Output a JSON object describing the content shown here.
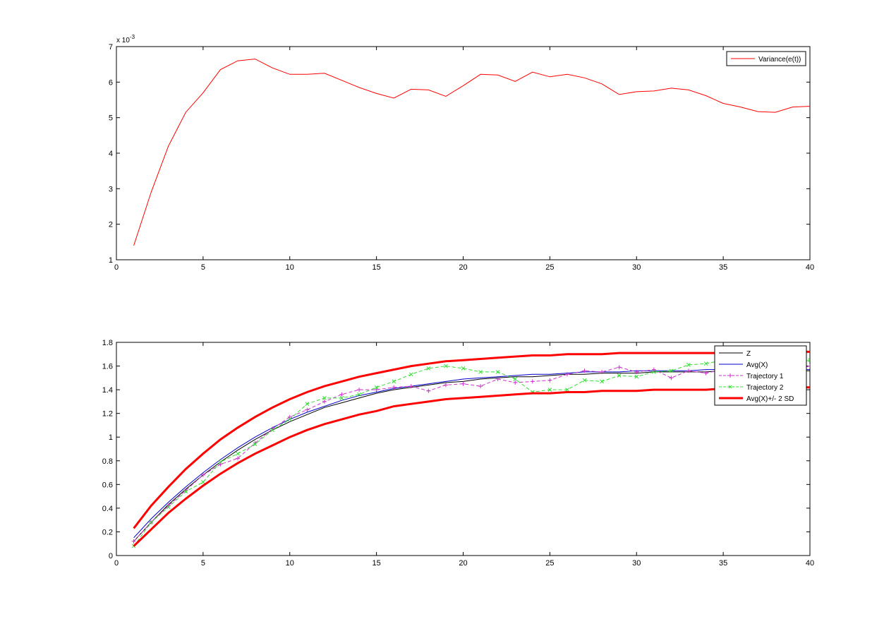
{
  "chart_data": [
    {
      "type": "line",
      "title": "",
      "xlabel": "",
      "ylabel": "",
      "xlim": [
        0,
        40
      ],
      "ylim": [
        1,
        7
      ],
      "y_multiplier_label": "x 10",
      "y_multiplier_exponent": "-3",
      "x_ticks": [
        0,
        5,
        10,
        15,
        20,
        25,
        30,
        35,
        40
      ],
      "y_ticks": [
        1,
        2,
        3,
        4,
        5,
        6,
        7
      ],
      "grid": false,
      "legend_position": "top-right",
      "series": [
        {
          "name": "Variance(e(t))",
          "color": "#ff0000",
          "style": "solid",
          "x": [
            1,
            2,
            3,
            4,
            5,
            6,
            7,
            8,
            9,
            10,
            11,
            12,
            13,
            14,
            15,
            16,
            17,
            18,
            19,
            20,
            21,
            22,
            23,
            24,
            25,
            26,
            27,
            28,
            29,
            30,
            31,
            32,
            33,
            34,
            35,
            36,
            37,
            38,
            39,
            40
          ],
          "values": [
            1.4,
            2.9,
            4.2,
            5.15,
            5.7,
            6.35,
            6.6,
            6.65,
            6.4,
            6.22,
            6.22,
            6.25,
            6.05,
            5.85,
            5.68,
            5.55,
            5.8,
            5.78,
            5.6,
            5.9,
            6.22,
            6.2,
            6.02,
            6.28,
            6.15,
            6.22,
            6.12,
            5.95,
            5.65,
            5.73,
            5.75,
            5.83,
            5.78,
            5.62,
            5.4,
            5.3,
            5.17,
            5.15,
            5.3,
            5.32
          ]
        }
      ]
    },
    {
      "type": "line",
      "title": "",
      "xlabel": "",
      "ylabel": "",
      "xlim": [
        0,
        40
      ],
      "ylim": [
        0,
        1.8
      ],
      "x_ticks": [
        0,
        5,
        10,
        15,
        20,
        25,
        30,
        35,
        40
      ],
      "y_ticks": [
        0,
        0.2,
        0.4,
        0.6,
        0.8,
        1,
        1.2,
        1.4,
        1.6,
        1.8
      ],
      "grid": false,
      "legend_position": "top-right",
      "x": [
        1,
        2,
        3,
        4,
        5,
        6,
        7,
        8,
        9,
        10,
        11,
        12,
        13,
        14,
        15,
        16,
        17,
        18,
        19,
        20,
        21,
        22,
        23,
        24,
        25,
        26,
        27,
        28,
        29,
        30,
        31,
        32,
        33,
        34,
        35,
        36,
        37,
        38,
        39,
        40
      ],
      "series": [
        {
          "name": "Z",
          "color": "#000000",
          "style": "solid",
          "values": [
            0.12,
            0.28,
            0.43,
            0.56,
            0.68,
            0.79,
            0.89,
            0.98,
            1.06,
            1.13,
            1.19,
            1.25,
            1.29,
            1.33,
            1.37,
            1.4,
            1.42,
            1.44,
            1.46,
            1.47,
            1.49,
            1.5,
            1.51,
            1.51,
            1.52,
            1.53,
            1.53,
            1.54,
            1.54,
            1.54,
            1.55,
            1.55,
            1.55,
            1.55,
            1.56,
            1.56,
            1.56,
            1.56,
            1.56,
            1.56
          ]
        },
        {
          "name": "Avg(X)",
          "color": "#0000cc",
          "style": "solid",
          "values": [
            0.15,
            0.31,
            0.45,
            0.58,
            0.7,
            0.81,
            0.91,
            1.0,
            1.08,
            1.15,
            1.21,
            1.26,
            1.31,
            1.35,
            1.38,
            1.41,
            1.43,
            1.45,
            1.47,
            1.49,
            1.5,
            1.51,
            1.52,
            1.53,
            1.53,
            1.54,
            1.55,
            1.55,
            1.55,
            1.56,
            1.56,
            1.56,
            1.56,
            1.57,
            1.57,
            1.57,
            1.57,
            1.57,
            1.57,
            1.57
          ]
        },
        {
          "name": "Trajectory 1",
          "color": "#cc33cc",
          "style": "dashed",
          "marker": "+",
          "values": [
            0.12,
            0.28,
            0.42,
            0.55,
            0.68,
            0.77,
            0.82,
            0.95,
            1.07,
            1.17,
            1.23,
            1.3,
            1.36,
            1.4,
            1.4,
            1.42,
            1.43,
            1.39,
            1.44,
            1.45,
            1.43,
            1.49,
            1.46,
            1.47,
            1.48,
            1.53,
            1.56,
            1.55,
            1.59,
            1.55,
            1.57,
            1.5,
            1.56,
            1.54,
            1.57,
            1.58,
            1.57,
            1.58,
            1.57,
            1.6
          ]
        },
        {
          "name": "Trajectory 2",
          "color": "#33dd33",
          "style": "dashed",
          "marker": "x",
          "values": [
            0.08,
            0.28,
            0.41,
            0.54,
            0.62,
            0.79,
            0.86,
            0.94,
            1.06,
            1.15,
            1.28,
            1.33,
            1.33,
            1.36,
            1.42,
            1.47,
            1.53,
            1.58,
            1.6,
            1.58,
            1.55,
            1.55,
            1.49,
            1.38,
            1.4,
            1.4,
            1.48,
            1.47,
            1.52,
            1.51,
            1.55,
            1.56,
            1.61,
            1.62,
            1.65,
            1.66,
            1.63,
            1.6,
            1.62,
            1.65
          ]
        },
        {
          "name": "Avg(X)+/- 2 SD",
          "color": "#ff0000",
          "style": "thick",
          "values": [
            0.23,
            0.42,
            0.58,
            0.73,
            0.86,
            0.98,
            1.08,
            1.17,
            1.25,
            1.32,
            1.38,
            1.43,
            1.47,
            1.51,
            1.54,
            1.57,
            1.6,
            1.62,
            1.64,
            1.65,
            1.66,
            1.67,
            1.68,
            1.69,
            1.69,
            1.7,
            1.7,
            1.7,
            1.71,
            1.71,
            1.71,
            1.71,
            1.71,
            1.71,
            1.71,
            1.72,
            1.72,
            1.72,
            1.72,
            1.72
          ]
        },
        {
          "name": "",
          "color": "#ff0000",
          "style": "thick",
          "values": [
            0.08,
            0.22,
            0.36,
            0.48,
            0.59,
            0.69,
            0.78,
            0.86,
            0.93,
            1.0,
            1.06,
            1.11,
            1.15,
            1.19,
            1.22,
            1.26,
            1.28,
            1.3,
            1.32,
            1.33,
            1.34,
            1.35,
            1.36,
            1.37,
            1.37,
            1.38,
            1.38,
            1.39,
            1.39,
            1.39,
            1.4,
            1.4,
            1.4,
            1.4,
            1.41,
            1.41,
            1.41,
            1.41,
            1.42,
            1.42
          ]
        }
      ]
    }
  ]
}
